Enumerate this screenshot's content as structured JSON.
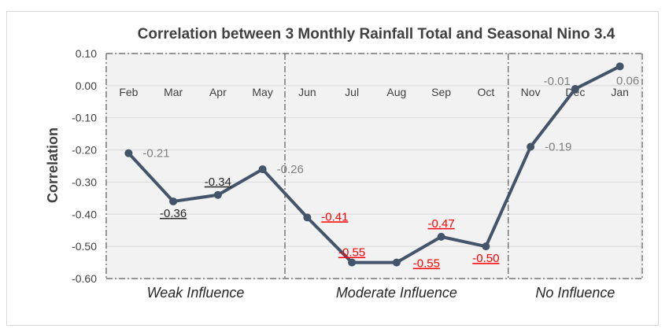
{
  "chart_data": {
    "type": "line",
    "title": "Correlation between 3 Monthly Rainfall Total and Seasonal Nino 3.4",
    "ylabel": "Correlation",
    "xlabel": "",
    "ylim": [
      -0.6,
      0.1
    ],
    "yticks": [
      "0.10",
      "0.00",
      "-0.10",
      "-0.20",
      "-0.30",
      "-0.40",
      "-0.50",
      "-0.60"
    ],
    "categories": [
      "Feb",
      "Mar",
      "Apr",
      "May",
      "Jun",
      "Jul",
      "Aug",
      "Sep",
      "Oct",
      "Nov",
      "Dec",
      "Jan"
    ],
    "values": [
      -0.21,
      -0.36,
      -0.34,
      -0.26,
      -0.41,
      -0.55,
      -0.55,
      -0.47,
      -0.5,
      -0.19,
      -0.01,
      0.06
    ],
    "data_labels": [
      "-0.21",
      "-0.36",
      "-0.34",
      "-0.26",
      "-0.41",
      "-0.55",
      "-0.55",
      "-0.47",
      "-0.50",
      "-0.19",
      "-0.01",
      "0.06"
    ],
    "label_styles": [
      "gray",
      "underline-black",
      "underline-black",
      "gray",
      "underline-red",
      "underline-red",
      "underline-red",
      "underline-red",
      "underline-red",
      "gray",
      "gray",
      "gray"
    ],
    "groups": [
      {
        "label": "Weak Influence",
        "from": "Feb",
        "to": "May"
      },
      {
        "label": "Moderate Influence",
        "from": "Jun",
        "to": "Oct"
      },
      {
        "label": "No Influence",
        "from": "Nov",
        "to": "Jan"
      }
    ],
    "grid": true,
    "legend": "none",
    "colors": {
      "line": "#44546a",
      "grid": "#d9d9d9",
      "plot_background": "#f2f2f2",
      "label_gray": "#7f7f7f",
      "label_black": "#262626",
      "label_red": "#ff0000",
      "divider": "#595959"
    }
  }
}
